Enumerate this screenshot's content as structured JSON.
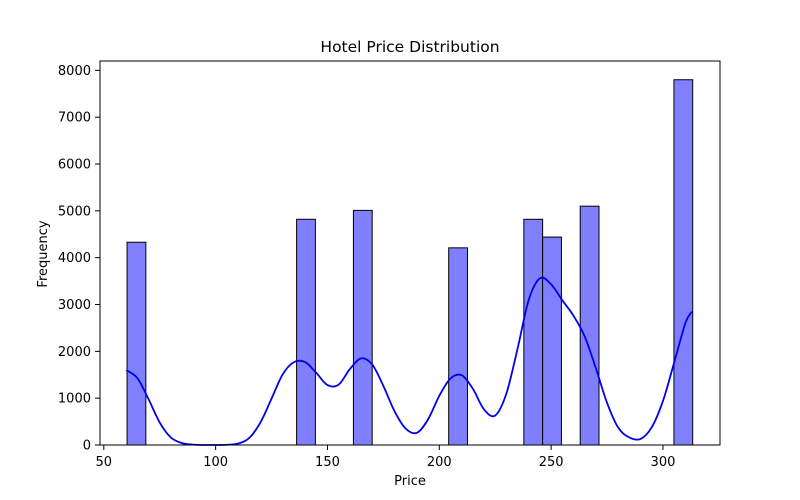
{
  "chart_data": {
    "type": "bar",
    "title": "Hotel Price Distribution",
    "xlabel": "Price",
    "ylabel": "Frequency",
    "xlim": [
      48.3,
      325.5
    ],
    "ylim": [
      0,
      8200
    ],
    "xticks": [
      50,
      100,
      150,
      200,
      250,
      300
    ],
    "yticks": [
      0,
      1000,
      2000,
      3000,
      4000,
      5000,
      6000,
      7000,
      8000
    ],
    "grid": false,
    "legend": "none",
    "bin_width": 8.4,
    "bins": [
      {
        "x_start": 60.4,
        "x_end": 68.8,
        "count": 4330
      },
      {
        "x_start": 136.2,
        "x_end": 144.6,
        "count": 4820
      },
      {
        "x_start": 161.6,
        "x_end": 170.0,
        "count": 5010
      },
      {
        "x_start": 204.2,
        "x_end": 212.6,
        "count": 4210
      },
      {
        "x_start": 237.8,
        "x_end": 246.2,
        "count": 4820
      },
      {
        "x_start": 246.2,
        "x_end": 254.6,
        "count": 4440
      },
      {
        "x_start": 263.0,
        "x_end": 271.4,
        "count": 5100
      },
      {
        "x_start": 304.9,
        "x_end": 313.3,
        "count": 7800
      }
    ],
    "kde": {
      "x": [
        60,
        65,
        70,
        75,
        80,
        85,
        90,
        95,
        100,
        105,
        110,
        115,
        120,
        125,
        130,
        135,
        140,
        145,
        150,
        155,
        160,
        165,
        170,
        175,
        180,
        185,
        190,
        195,
        200,
        205,
        210,
        215,
        220,
        225,
        230,
        235,
        240,
        245,
        250,
        255,
        260,
        265,
        270,
        275,
        280,
        285,
        290,
        295,
        300,
        305,
        310,
        313
      ],
      "y": [
        1600,
        1430,
        980,
        480,
        160,
        40,
        8,
        0,
        0,
        5,
        30,
        150,
        480,
        990,
        1510,
        1770,
        1770,
        1540,
        1280,
        1290,
        1620,
        1850,
        1720,
        1260,
        720,
        350,
        260,
        550,
        1050,
        1420,
        1490,
        1200,
        760,
        630,
        1100,
        2060,
        3100,
        3560,
        3430,
        3090,
        2760,
        2320,
        1640,
        900,
        370,
        160,
        130,
        380,
        940,
        1760,
        2600,
        2850
      ]
    },
    "colors": {
      "bar_fill": "#8080ff",
      "bar_edge": "#000000",
      "kde_line": "#0000ee"
    }
  }
}
